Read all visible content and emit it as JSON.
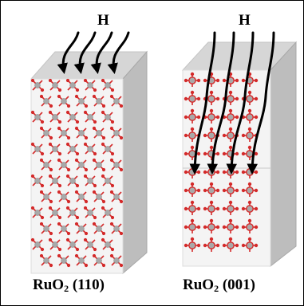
{
  "left_panel": {
    "arrow_label": "H",
    "caption_base": "RuO",
    "caption_subscript": "2",
    "caption_plane": " (110)"
  },
  "right_panel": {
    "arrow_label": "H",
    "caption_base": "RuO",
    "caption_subscript": "2",
    "caption_plane": " (001)"
  },
  "colors": {
    "oxygen": "#d42a2a",
    "ruthenium": "#a9a9a9",
    "slab_front": "#f4f4f4",
    "slab_top": "#d6d6d6",
    "slab_side": "#bdbdbd",
    "arrow": "#000000"
  }
}
